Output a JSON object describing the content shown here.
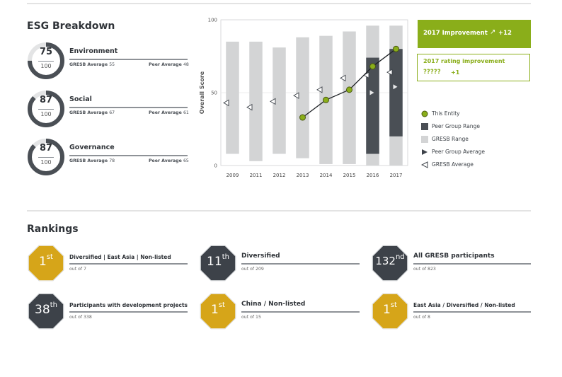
{
  "esg_breakdown": {
    "title": "ESG Breakdown",
    "items": [
      {
        "name": "Environment",
        "score": "75",
        "max": "100",
        "score_value": 75,
        "gresb_label": "GRESB Average",
        "gresb_value": "55",
        "peer_label": "Peer Average",
        "peer_value": "48"
      },
      {
        "name": "Social",
        "score": "87",
        "max": "100",
        "score_value": 87,
        "gresb_label": "GRESB Average",
        "gresb_value": "67",
        "peer_label": "Peer Average",
        "peer_value": "61"
      },
      {
        "name": "Governance",
        "score": "87",
        "max": "100",
        "score_value": 87,
        "gresb_label": "GRESB Average",
        "gresb_value": "78",
        "peer_label": "Peer Average",
        "peer_value": "65"
      }
    ]
  },
  "chart_data": {
    "type": "line",
    "title": "",
    "xlabel": "",
    "ylabel": "Overall Score",
    "ylim": [
      0,
      100
    ],
    "y_ticks": [
      "0",
      "50",
      "100"
    ],
    "categories": [
      "2009",
      "2011",
      "2012",
      "2013",
      "2014",
      "2015",
      "2016",
      "2017"
    ],
    "gresb_range": [
      [
        8,
        85
      ],
      [
        3,
        85
      ],
      [
        8,
        81
      ],
      [
        5,
        88
      ],
      [
        1,
        89
      ],
      [
        1,
        92
      ],
      [
        0,
        96
      ],
      [
        0,
        96
      ]
    ],
    "peer_group_range": [
      null,
      null,
      null,
      null,
      null,
      null,
      [
        8,
        74
      ],
      [
        20,
        80
      ]
    ],
    "gresb_average": [
      43,
      40,
      44,
      48,
      52,
      60,
      62,
      64
    ],
    "peer_group_average": [
      null,
      null,
      null,
      null,
      null,
      null,
      50,
      54
    ],
    "this_entity": [
      null,
      null,
      null,
      33,
      45,
      52,
      68,
      80
    ]
  },
  "improvement": {
    "label": "2017 Improvement",
    "icon": "trend-up-icon",
    "value": "+12",
    "rating_label": "2017 rating improvement",
    "rating_sub": "?????",
    "rating_value": "+1"
  },
  "legend": [
    {
      "label": "This Entity",
      "symbol": "green-dot"
    },
    {
      "label": "Peer Group Range",
      "symbol": "dark-square"
    },
    {
      "label": "GRESB Range",
      "symbol": "light-square"
    },
    {
      "label": "Peer Group Average",
      "symbol": "right-triangle"
    },
    {
      "label": "GRESB Average",
      "symbol": "left-triangle"
    }
  ],
  "rankings": {
    "title": "Rankings",
    "items": [
      {
        "rank": "1",
        "suffix": "st",
        "name": "Diversified | East Asia | Non-listed",
        "sub": "out of 7",
        "color": "#d6a519"
      },
      {
        "rank": "11",
        "suffix": "th",
        "name": "Diversified",
        "sub": "out of 209",
        "color": "#3d4249"
      },
      {
        "rank": "132",
        "suffix": "nd",
        "name": "All GRESB participants",
        "sub": "out of 823",
        "color": "#3d4249"
      },
      {
        "rank": "38",
        "suffix": "th",
        "name": "Participants with development projects",
        "sub": "out of 338",
        "color": "#3d4249"
      },
      {
        "rank": "1",
        "suffix": "st",
        "name": "China / Non-listed",
        "sub": "out of 15",
        "color": "#d6a519"
      },
      {
        "rank": "1",
        "suffix": "st",
        "name": "East Asia / Diversified / Non-listed",
        "sub": "out of 8",
        "color": "#d6a519"
      }
    ]
  },
  "colors": {
    "accent_green": "#8aae1a",
    "gold": "#d6a519",
    "dark": "#3d4249",
    "range_light": "#d3d4d5",
    "range_dark": "#4a4f55"
  }
}
